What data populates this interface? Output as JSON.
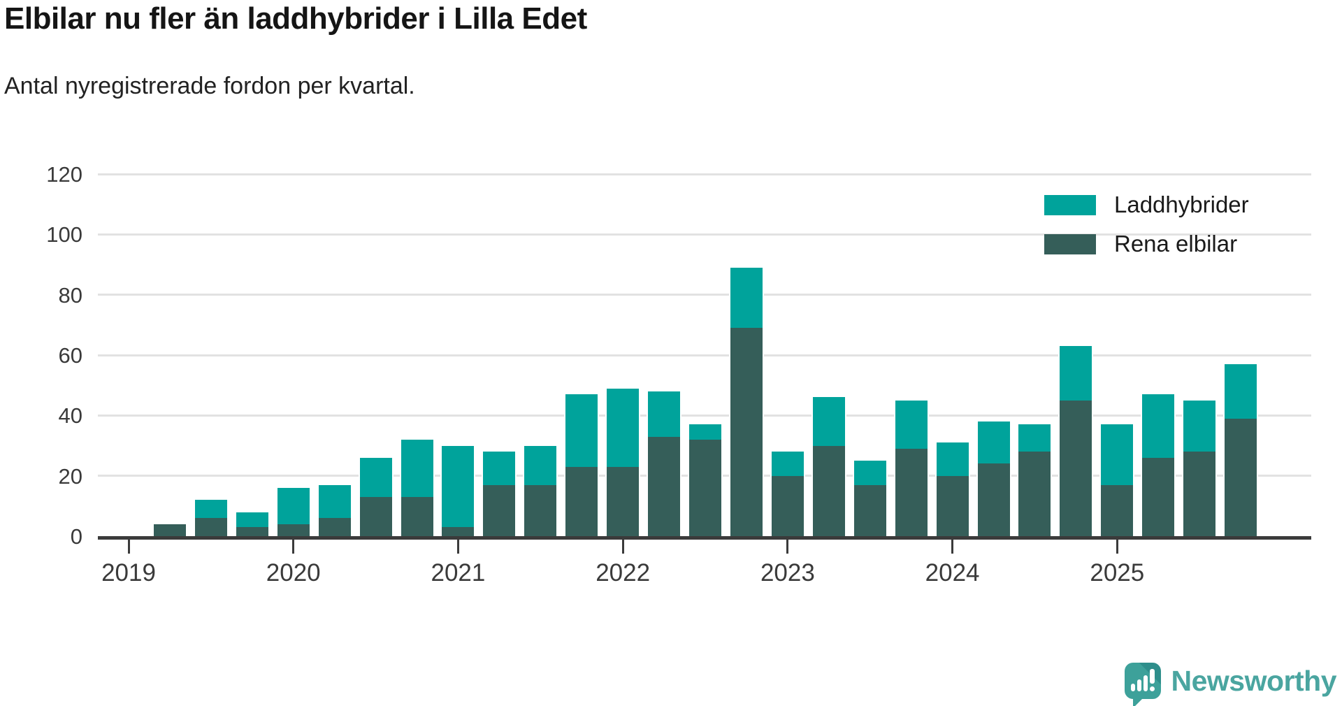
{
  "title": "Elbilar nu fler än laddhybrider i Lilla Edet",
  "subtitle": "Antal nyregistrerade fordon per kvartal.",
  "legend": {
    "items": [
      {
        "label": "Laddhybrider",
        "color": "#00a39b"
      },
      {
        "label": "Rena elbilar",
        "color": "#355e59"
      }
    ]
  },
  "logo": {
    "text": "Newsworthy"
  },
  "chart_data": {
    "type": "bar",
    "stacked": true,
    "title": "Elbilar nu fler än laddhybrider i Lilla Edet",
    "subtitle": "Antal nyregistrerade fordon per kvartal.",
    "ylabel": "",
    "xlabel": "",
    "ylim": [
      0,
      120
    ],
    "y_ticks": [
      0,
      20,
      40,
      60,
      80,
      100,
      120
    ],
    "x_tick_labels": [
      "2019",
      "2020",
      "2021",
      "2022",
      "2023",
      "2024",
      "2025"
    ],
    "grid": "horizontal",
    "legend_position": "top-right",
    "categories": [
      "2019 Q1",
      "2019 Q2",
      "2019 Q3",
      "2019 Q4",
      "2020 Q1",
      "2020 Q2",
      "2020 Q3",
      "2020 Q4",
      "2021 Q1",
      "2021 Q2",
      "2021 Q3",
      "2021 Q4",
      "2022 Q1",
      "2022 Q2",
      "2022 Q3",
      "2022 Q4",
      "2023 Q1",
      "2023 Q2",
      "2023 Q3",
      "2023 Q4",
      "2024 Q1",
      "2024 Q2",
      "2024 Q3",
      "2024 Q4",
      "2025 Q1",
      "2025 Q2",
      "2025 Q3"
    ],
    "series": [
      {
        "name": "Rena elbilar",
        "color": "#355e59",
        "values": [
          4,
          6,
          3,
          4,
          6,
          13,
          13,
          3,
          17,
          17,
          23,
          23,
          33,
          32,
          69,
          20,
          30,
          17,
          29,
          20,
          24,
          28,
          45,
          17,
          26,
          28,
          39
        ]
      },
      {
        "name": "Laddhybrider",
        "color": "#00a39b",
        "values": [
          0,
          6,
          5,
          12,
          11,
          13,
          19,
          27,
          11,
          13,
          24,
          26,
          15,
          5,
          20,
          8,
          16,
          8,
          16,
          11,
          14,
          9,
          18,
          20,
          21,
          17,
          18
        ]
      }
    ],
    "totals": [
      4,
      12,
      8,
      16,
      17,
      26,
      32,
      30,
      28,
      30,
      47,
      49,
      48,
      37,
      89,
      28,
      46,
      25,
      45,
      31,
      38,
      37,
      63,
      37,
      47,
      45,
      57
    ]
  }
}
